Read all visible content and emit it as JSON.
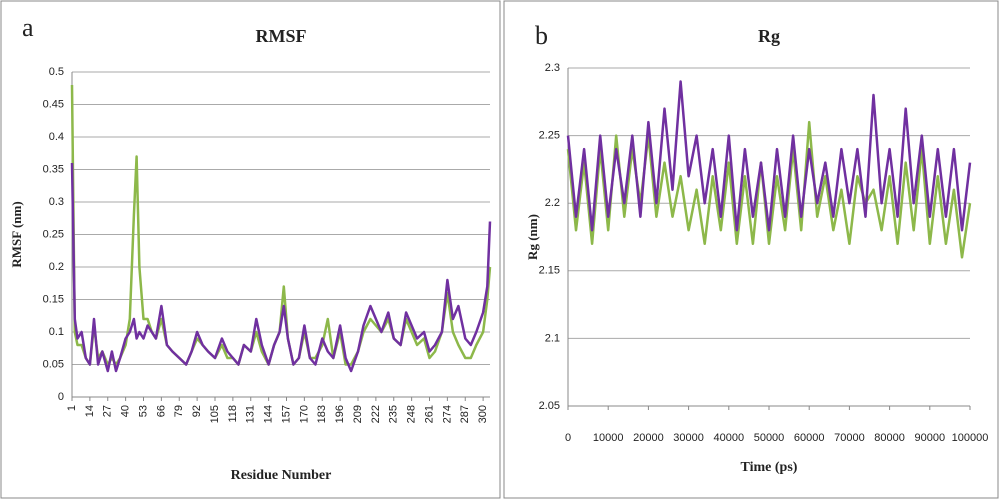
{
  "chart_data": [
    {
      "type": "line",
      "panel_label": "a",
      "title": "RMSF",
      "xlabel": "Residue Number",
      "ylabel": "RMSF (nm)",
      "x": [
        1,
        3,
        5,
        8,
        11,
        14,
        17,
        20,
        23,
        27,
        30,
        33,
        36,
        40,
        43,
        46,
        48,
        50,
        53,
        56,
        59,
        62,
        66,
        70,
        74,
        79,
        84,
        88,
        92,
        96,
        100,
        105,
        110,
        114,
        118,
        122,
        126,
        131,
        135,
        139,
        144,
        148,
        152,
        155,
        158,
        162,
        166,
        170,
        174,
        178,
        183,
        187,
        191,
        196,
        200,
        204,
        209,
        213,
        218,
        222,
        226,
        231,
        235,
        240,
        244,
        248,
        252,
        257,
        261,
        265,
        270,
        274,
        278,
        282,
        287,
        291,
        295,
        300,
        303,
        305
      ],
      "series": [
        {
          "color": "#8db84a",
          "values": [
            0.48,
            0.1,
            0.08,
            0.08,
            0.06,
            0.05,
            0.11,
            0.06,
            0.07,
            0.05,
            0.06,
            0.05,
            0.06,
            0.08,
            0.12,
            0.28,
            0.37,
            0.2,
            0.12,
            0.12,
            0.1,
            0.09,
            0.12,
            0.08,
            0.07,
            0.06,
            0.05,
            0.07,
            0.09,
            0.08,
            0.07,
            0.06,
            0.08,
            0.06,
            0.06,
            0.05,
            0.08,
            0.07,
            0.1,
            0.07,
            0.05,
            0.08,
            0.1,
            0.17,
            0.09,
            0.05,
            0.06,
            0.1,
            0.06,
            0.06,
            0.08,
            0.12,
            0.06,
            0.1,
            0.05,
            0.05,
            0.07,
            0.1,
            0.12,
            0.11,
            0.1,
            0.12,
            0.09,
            0.08,
            0.12,
            0.1,
            0.08,
            0.09,
            0.06,
            0.07,
            0.1,
            0.16,
            0.1,
            0.08,
            0.06,
            0.06,
            0.08,
            0.1,
            0.15,
            0.2
          ]
        },
        {
          "color": "#7030a0",
          "values": [
            0.36,
            0.12,
            0.09,
            0.1,
            0.06,
            0.05,
            0.12,
            0.05,
            0.07,
            0.04,
            0.07,
            0.04,
            0.06,
            0.09,
            0.1,
            0.12,
            0.09,
            0.1,
            0.09,
            0.11,
            0.1,
            0.09,
            0.14,
            0.08,
            0.07,
            0.06,
            0.05,
            0.07,
            0.1,
            0.08,
            0.07,
            0.06,
            0.09,
            0.07,
            0.06,
            0.05,
            0.08,
            0.07,
            0.12,
            0.08,
            0.05,
            0.08,
            0.1,
            0.14,
            0.09,
            0.05,
            0.06,
            0.11,
            0.06,
            0.05,
            0.09,
            0.07,
            0.06,
            0.11,
            0.06,
            0.04,
            0.07,
            0.11,
            0.14,
            0.12,
            0.1,
            0.13,
            0.09,
            0.08,
            0.13,
            0.11,
            0.09,
            0.1,
            0.07,
            0.08,
            0.1,
            0.18,
            0.12,
            0.14,
            0.09,
            0.08,
            0.1,
            0.13,
            0.17,
            0.27
          ]
        }
      ],
      "xlim": [
        1,
        305
      ],
      "xticks": [
        1,
        14,
        27,
        40,
        53,
        66,
        79,
        92,
        105,
        118,
        131,
        144,
        157,
        170,
        183,
        196,
        209,
        222,
        235,
        248,
        261,
        274,
        287,
        300
      ],
      "ylim": [
        0,
        0.5
      ],
      "yticks": [
        0,
        0.05,
        0.1,
        0.15,
        0.2,
        0.25,
        0.3,
        0.35,
        0.4,
        0.45,
        0.5
      ],
      "grid": true
    },
    {
      "type": "line",
      "panel_label": "b",
      "title": "Rg",
      "xlabel": "Time (ps)",
      "ylabel": "Rg (nm)",
      "x": [
        0,
        2000,
        4000,
        6000,
        8000,
        10000,
        12000,
        14000,
        16000,
        18000,
        20000,
        22000,
        24000,
        26000,
        28000,
        30000,
        32000,
        34000,
        36000,
        38000,
        40000,
        42000,
        44000,
        46000,
        48000,
        50000,
        52000,
        54000,
        56000,
        58000,
        60000,
        62000,
        64000,
        66000,
        68000,
        70000,
        72000,
        74000,
        76000,
        78000,
        80000,
        82000,
        84000,
        86000,
        88000,
        90000,
        92000,
        94000,
        96000,
        98000,
        100000
      ],
      "series": [
        {
          "color": "#8db84a",
          "values": [
            2.24,
            2.18,
            2.23,
            2.17,
            2.24,
            2.18,
            2.25,
            2.19,
            2.24,
            2.2,
            2.25,
            2.19,
            2.23,
            2.19,
            2.22,
            2.18,
            2.21,
            2.17,
            2.22,
            2.18,
            2.23,
            2.17,
            2.22,
            2.17,
            2.23,
            2.17,
            2.22,
            2.18,
            2.24,
            2.18,
            2.26,
            2.19,
            2.22,
            2.18,
            2.21,
            2.17,
            2.22,
            2.2,
            2.21,
            2.18,
            2.22,
            2.17,
            2.23,
            2.18,
            2.24,
            2.17,
            2.22,
            2.17,
            2.21,
            2.16,
            2.2
          ]
        },
        {
          "color": "#7030a0",
          "values": [
            2.25,
            2.19,
            2.24,
            2.18,
            2.25,
            2.19,
            2.24,
            2.2,
            2.25,
            2.19,
            2.26,
            2.2,
            2.27,
            2.21,
            2.29,
            2.22,
            2.25,
            2.2,
            2.24,
            2.19,
            2.25,
            2.18,
            2.24,
            2.19,
            2.23,
            2.18,
            2.24,
            2.19,
            2.25,
            2.19,
            2.24,
            2.2,
            2.23,
            2.19,
            2.24,
            2.2,
            2.24,
            2.19,
            2.28,
            2.2,
            2.24,
            2.19,
            2.27,
            2.2,
            2.25,
            2.19,
            2.24,
            2.19,
            2.24,
            2.18,
            2.23
          ]
        }
      ],
      "xlim": [
        0,
        100000
      ],
      "xticks": [
        0,
        10000,
        20000,
        30000,
        40000,
        50000,
        60000,
        70000,
        80000,
        90000,
        100000
      ],
      "ylim": [
        2.05,
        2.3
      ],
      "yticks": [
        2.05,
        2.1,
        2.15,
        2.2,
        2.25,
        2.3
      ],
      "grid": true
    }
  ]
}
